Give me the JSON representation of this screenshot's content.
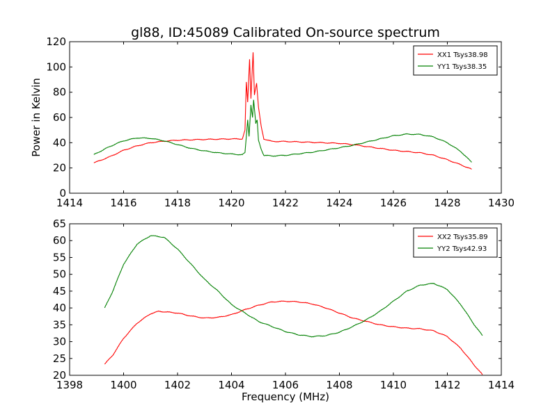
{
  "chart_data": [
    {
      "type": "line",
      "title": "gl88, ID:45089 Calibrated On-source spectrum",
      "xlabel": "",
      "ylabel": "Power in Kelvin",
      "xlim": [
        1414,
        1430
      ],
      "ylim": [
        0,
        120
      ],
      "xticks": [
        "1414",
        "1416",
        "1418",
        "1420",
        "1422",
        "1424",
        "1426",
        "1428",
        "1430"
      ],
      "yticks": [
        "0",
        "20",
        "40",
        "60",
        "80",
        "100",
        "120"
      ],
      "grid": false,
      "legend": "top-right",
      "series": [
        {
          "name": "XX1 Tsys38.98",
          "color": "#ff0000",
          "points": [
            [
              1414.9,
              24
            ],
            [
              1415.5,
              29
            ],
            [
              1416,
              34
            ],
            [
              1416.5,
              37.5
            ],
            [
              1417,
              40
            ],
            [
              1417.5,
              41.2
            ],
            [
              1418,
              42
            ],
            [
              1419,
              42.6
            ],
            [
              1420,
              43
            ],
            [
              1420.4,
              43
            ],
            [
              1420.5,
              50
            ],
            [
              1420.55,
              88
            ],
            [
              1420.6,
              72
            ],
            [
              1420.67,
              106
            ],
            [
              1420.72,
              75
            ],
            [
              1420.8,
              112
            ],
            [
              1420.85,
              78
            ],
            [
              1420.93,
              87
            ],
            [
              1421,
              68
            ],
            [
              1421.1,
              53
            ],
            [
              1421.2,
              43
            ],
            [
              1421.5,
              41
            ],
            [
              1422,
              41
            ],
            [
              1423,
              40.3
            ],
            [
              1424,
              39.5
            ],
            [
              1424.5,
              38.5
            ],
            [
              1425,
              37
            ],
            [
              1425.5,
              35.5
            ],
            [
              1426,
              34
            ],
            [
              1426.5,
              33
            ],
            [
              1427,
              32
            ],
            [
              1427.5,
              30
            ],
            [
              1428,
              26.5
            ],
            [
              1428.5,
              22.5
            ],
            [
              1428.9,
              19
            ]
          ]
        },
        {
          "name": "YY1 Tsys38.35",
          "color": "#008000",
          "points": [
            [
              1414.9,
              30.5
            ],
            [
              1415.3,
              35
            ],
            [
              1415.7,
              39
            ],
            [
              1416,
              41.5
            ],
            [
              1416.5,
              43.8
            ],
            [
              1417,
              43.5
            ],
            [
              1417.5,
              41.5
            ],
            [
              1418,
              38.5
            ],
            [
              1418.5,
              35.5
            ],
            [
              1419,
              33.5
            ],
            [
              1419.5,
              32
            ],
            [
              1420,
              31
            ],
            [
              1420.4,
              30.5
            ],
            [
              1420.5,
              32
            ],
            [
              1420.6,
              58
            ],
            [
              1420.65,
              45
            ],
            [
              1420.72,
              70
            ],
            [
              1420.78,
              60
            ],
            [
              1420.82,
              74
            ],
            [
              1420.9,
              55
            ],
            [
              1420.95,
              58
            ],
            [
              1421,
              42
            ],
            [
              1421.1,
              35
            ],
            [
              1421.2,
              30
            ],
            [
              1421.5,
              29.5
            ],
            [
              1422,
              30
            ],
            [
              1423,
              32.5
            ],
            [
              1424,
              36
            ],
            [
              1424.5,
              38
            ],
            [
              1425,
              40.5
            ],
            [
              1425.5,
              43
            ],
            [
              1426,
              45.5
            ],
            [
              1426.5,
              46.8
            ],
            [
              1427,
              46.5
            ],
            [
              1427.5,
              44.5
            ],
            [
              1428,
              40
            ],
            [
              1428.5,
              33
            ],
            [
              1428.9,
              24.5
            ]
          ]
        }
      ]
    },
    {
      "type": "line",
      "title": "",
      "xlabel": "Frequency (MHz)",
      "ylabel": "",
      "xlim": [
        1398,
        1414
      ],
      "ylim": [
        20,
        65
      ],
      "xticks": [
        "1398",
        "1400",
        "1402",
        "1404",
        "1406",
        "1408",
        "1410",
        "1412",
        "1414"
      ],
      "yticks": [
        "20",
        "25",
        "30",
        "35",
        "40",
        "45",
        "50",
        "55",
        "60",
        "65"
      ],
      "grid": false,
      "legend": "top-right",
      "series": [
        {
          "name": "XX2 Tsys35.89",
          "color": "#ff0000",
          "points": [
            [
              1399.3,
              23.3
            ],
            [
              1399.6,
              26
            ],
            [
              1400,
              31
            ],
            [
              1400.5,
              35.5
            ],
            [
              1401,
              38.3
            ],
            [
              1401.3,
              39
            ],
            [
              1401.6,
              38.8
            ],
            [
              1402,
              38.5
            ],
            [
              1402.5,
              37.6
            ],
            [
              1403,
              37
            ],
            [
              1403.5,
              37.2
            ],
            [
              1404,
              38
            ],
            [
              1404.5,
              39.5
            ],
            [
              1405,
              40.8
            ],
            [
              1405.5,
              41.8
            ],
            [
              1406,
              42
            ],
            [
              1406.5,
              41.8
            ],
            [
              1407,
              41.2
            ],
            [
              1407.5,
              40
            ],
            [
              1408,
              38.5
            ],
            [
              1408.5,
              37
            ],
            [
              1409,
              36
            ],
            [
              1409.5,
              35
            ],
            [
              1410,
              34.4
            ],
            [
              1410.5,
              34
            ],
            [
              1411,
              33.8
            ],
            [
              1411.5,
              33.2
            ],
            [
              1412,
              31.5
            ],
            [
              1412.5,
              28
            ],
            [
              1413,
              23
            ],
            [
              1413.3,
              20.2
            ]
          ]
        },
        {
          "name": "YY2 Tsys42.93",
          "color": "#008000",
          "points": [
            [
              1399.3,
              40
            ],
            [
              1399.6,
              45
            ],
            [
              1400,
              53
            ],
            [
              1400.5,
              59
            ],
            [
              1401,
              61.5
            ],
            [
              1401.5,
              61
            ],
            [
              1402,
              57.5
            ],
            [
              1402.5,
              53
            ],
            [
              1403,
              48.5
            ],
            [
              1403.5,
              45
            ],
            [
              1404,
              41
            ],
            [
              1404.5,
              38.5
            ],
            [
              1405,
              36
            ],
            [
              1405.5,
              34.5
            ],
            [
              1406,
              33
            ],
            [
              1406.5,
              32
            ],
            [
              1407,
              31.5
            ],
            [
              1407.5,
              31.8
            ],
            [
              1408,
              32.8
            ],
            [
              1408.5,
              34.5
            ],
            [
              1409,
              36.5
            ],
            [
              1409.5,
              39
            ],
            [
              1410,
              42
            ],
            [
              1410.5,
              45
            ],
            [
              1411,
              46.8
            ],
            [
              1411.5,
              47.3
            ],
            [
              1412,
              45.5
            ],
            [
              1412.5,
              41
            ],
            [
              1413,
              35
            ],
            [
              1413.3,
              31.8
            ]
          ]
        }
      ]
    }
  ]
}
